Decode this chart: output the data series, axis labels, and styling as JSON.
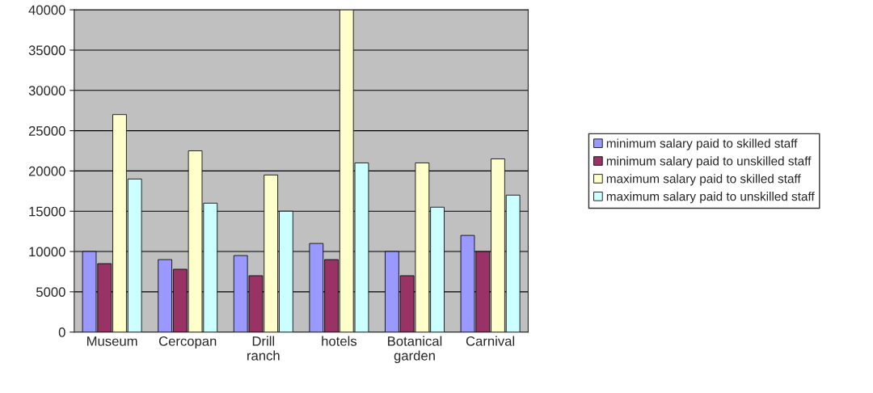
{
  "chart_data": {
    "type": "bar",
    "categories": [
      "Museum",
      "Cercopan",
      "Drill\nranch",
      "hotels",
      "Botanical\ngarden",
      "Carnival"
    ],
    "series": [
      {
        "name": "minimum salary paid to skilled staff",
        "color": "#9999ff",
        "values": [
          10000,
          9000,
          9500,
          11000,
          10000,
          12000
        ]
      },
      {
        "name": "minimum salary paid to unskilled staff",
        "color": "#993366",
        "values": [
          8500,
          7800,
          7000,
          9000,
          7000,
          10000
        ]
      },
      {
        "name": "maximum salary paid to skilled staff",
        "color": "#ffffcc",
        "values": [
          27000,
          22500,
          19500,
          40000,
          21000,
          21500
        ]
      },
      {
        "name": "maximum salary paid to unskilled staff",
        "color": "#ccffff",
        "values": [
          19000,
          16000,
          15000,
          21000,
          15500,
          17000
        ]
      }
    ],
    "ylim": [
      0,
      40000
    ],
    "yticks": [
      0,
      5000,
      10000,
      15000,
      20000,
      25000,
      30000,
      35000,
      40000
    ],
    "grid": "y",
    "legend": "right"
  }
}
